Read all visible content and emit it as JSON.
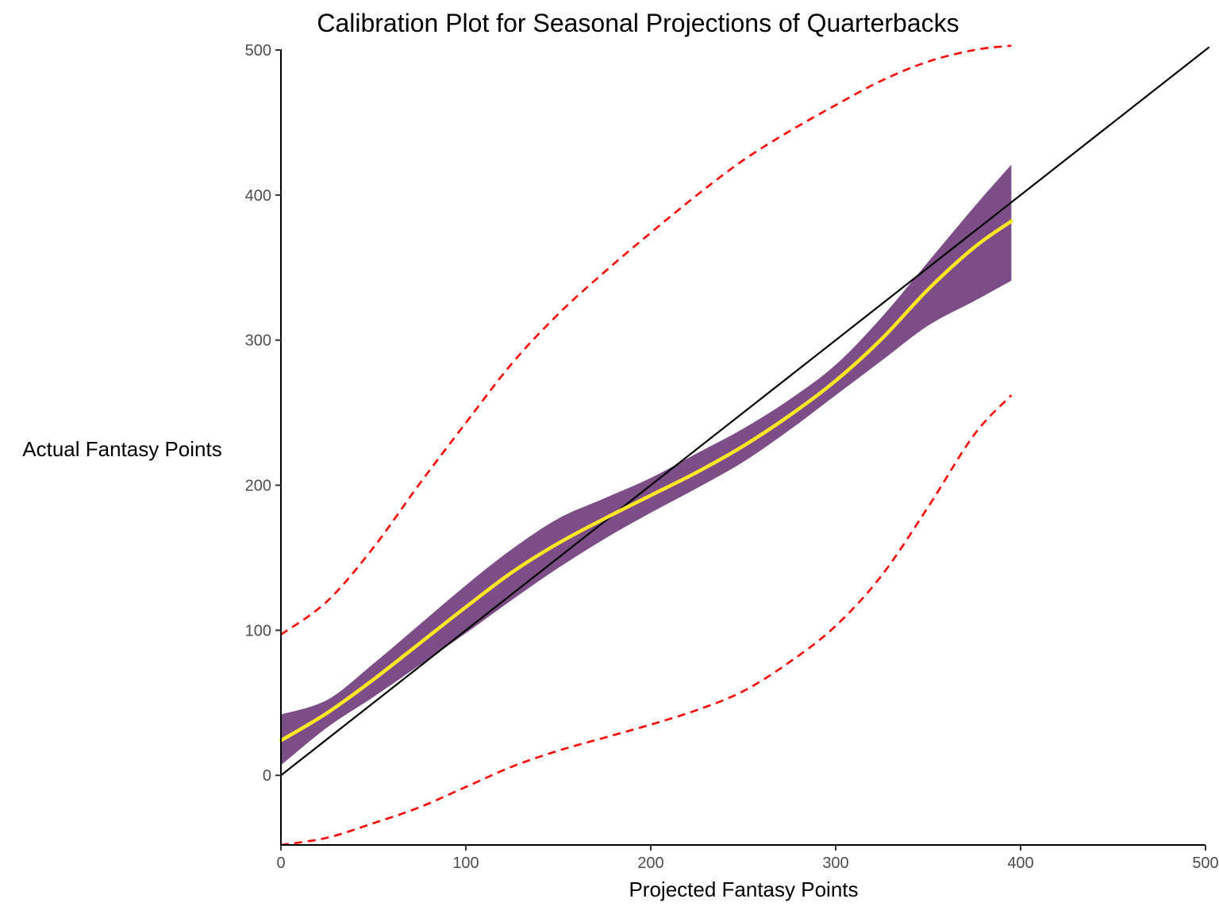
{
  "chart_data": {
    "type": "line",
    "title": "Calibration Plot for Seasonal Projections of Quarterbacks",
    "xlabel": "Projected Fantasy Points",
    "ylabel": "Actual Fantasy Points",
    "xlim": [
      0,
      500
    ],
    "ylim": [
      -48,
      500
    ],
    "x_ticks": [
      0,
      100,
      200,
      300,
      400,
      500
    ],
    "y_ticks": [
      0,
      100,
      200,
      300,
      400,
      500
    ],
    "x_tick_labels": [
      "0",
      "100",
      "200",
      "300",
      "400",
      "500"
    ],
    "y_tick_labels": [
      "0",
      "100",
      "200",
      "300",
      "400",
      "500"
    ],
    "grid": false,
    "legend": "none",
    "colors": {
      "smooth_line": "#FDE725",
      "confidence_band": "#440154",
      "prediction_interval": "#FF0000",
      "identity_line": "#000000"
    },
    "series": [
      {
        "role": "smoothed calibration fit",
        "x": [
          0,
          25,
          50,
          75,
          100,
          125,
          150,
          175,
          200,
          225,
          250,
          275,
          300,
          325,
          350,
          375,
          395
        ],
        "y": [
          24,
          43,
          66,
          91,
          116,
          140,
          160,
          177,
          193,
          209,
          227,
          248,
          272,
          301,
          335,
          364,
          382
        ]
      },
      {
        "role": "confidence band upper",
        "x": [
          0,
          25,
          50,
          75,
          100,
          125,
          150,
          175,
          200,
          225,
          250,
          275,
          300,
          325,
          350,
          375,
          395
        ],
        "y": [
          42,
          52,
          77,
          104,
          131,
          156,
          177,
          191,
          205,
          222,
          239,
          259,
          283,
          316,
          354,
          392,
          421
        ]
      },
      {
        "role": "confidence band lower",
        "x": [
          0,
          25,
          50,
          75,
          100,
          125,
          150,
          175,
          200,
          225,
          250,
          275,
          300,
          325,
          350,
          375,
          395
        ],
        "y": [
          7,
          33,
          54,
          76,
          98,
          121,
          143,
          163,
          181,
          198,
          216,
          238,
          262,
          286,
          310,
          327,
          341
        ]
      },
      {
        "role": "prediction interval upper",
        "x": [
          0,
          25,
          50,
          75,
          100,
          125,
          150,
          175,
          200,
          225,
          250,
          275,
          300,
          325,
          350,
          375,
          395
        ],
        "y": [
          97,
          120,
          157,
          201,
          243,
          284,
          318,
          347,
          374,
          400,
          424,
          444,
          462,
          479,
          492,
          500,
          503
        ]
      },
      {
        "role": "prediction interval lower",
        "x": [
          0,
          25,
          50,
          75,
          100,
          125,
          150,
          175,
          200,
          225,
          250,
          275,
          300,
          325,
          350,
          375,
          395
        ],
        "y": [
          -48,
          -43,
          -33,
          -22,
          -8,
          6,
          17,
          26,
          35,
          45,
          58,
          78,
          103,
          138,
          185,
          235,
          262
        ]
      },
      {
        "role": "perfect calibration (y = x)",
        "x": [
          0,
          502
        ],
        "y": [
          0,
          502
        ]
      }
    ]
  }
}
